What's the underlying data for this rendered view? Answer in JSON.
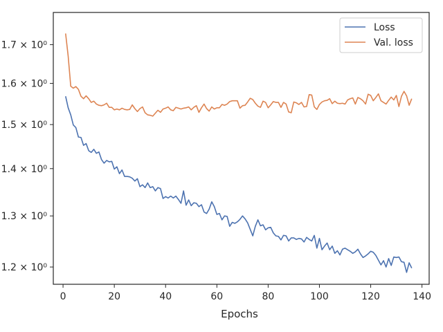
{
  "chart_data": {
    "type": "line",
    "title": "",
    "xlabel": "Epochs",
    "ylabel": "",
    "y_scale": "log",
    "grid": false,
    "legend_position": "top-right",
    "xlim": [
      -3.8,
      142.8
    ],
    "ylim": [
      1.168,
      1.788
    ],
    "xticks": [
      0,
      20,
      40,
      60,
      80,
      100,
      120,
      140
    ],
    "xtick_labels": [
      "0",
      "20",
      "40",
      "60",
      "80",
      "100",
      "120",
      "140"
    ],
    "yticks": [
      1.2,
      1.3,
      1.4,
      1.5,
      1.6,
      1.7
    ],
    "ytick_labels": [
      "1.2 × 10⁰",
      "1.3 × 10⁰",
      "1.4 × 10⁰",
      "1.5 × 10⁰",
      "1.6 × 10⁰",
      "1.7 × 10⁰"
    ],
    "series": [
      {
        "name": "Loss",
        "color": "#4c72b0",
        "x_start": 1,
        "values": [
          1.568,
          1.54,
          1.523,
          1.499,
          1.493,
          1.471,
          1.47,
          1.452,
          1.456,
          1.44,
          1.436,
          1.443,
          1.434,
          1.437,
          1.42,
          1.412,
          1.418,
          1.415,
          1.416,
          1.399,
          1.404,
          1.389,
          1.397,
          1.383,
          1.383,
          1.382,
          1.379,
          1.373,
          1.378,
          1.361,
          1.365,
          1.359,
          1.369,
          1.359,
          1.361,
          1.352,
          1.359,
          1.357,
          1.336,
          1.34,
          1.337,
          1.341,
          1.337,
          1.341,
          1.334,
          1.326,
          1.352,
          1.322,
          1.333,
          1.321,
          1.327,
          1.326,
          1.319,
          1.323,
          1.308,
          1.305,
          1.314,
          1.329,
          1.319,
          1.303,
          1.305,
          1.292,
          1.3,
          1.299,
          1.279,
          1.287,
          1.285,
          1.288,
          1.293,
          1.3,
          1.294,
          1.286,
          1.273,
          1.26,
          1.279,
          1.292,
          1.28,
          1.282,
          1.272,
          1.276,
          1.277,
          1.266,
          1.26,
          1.259,
          1.252,
          1.261,
          1.26,
          1.25,
          1.256,
          1.256,
          1.253,
          1.255,
          1.254,
          1.248,
          1.257,
          1.253,
          1.25,
          1.261,
          1.236,
          1.255,
          1.233,
          1.24,
          1.246,
          1.233,
          1.24,
          1.226,
          1.231,
          1.223,
          1.234,
          1.236,
          1.233,
          1.23,
          1.226,
          1.229,
          1.234,
          1.225,
          1.218,
          1.221,
          1.225,
          1.23,
          1.228,
          1.222,
          1.213,
          1.204,
          1.212,
          1.2,
          1.216,
          1.203,
          1.219,
          1.218,
          1.219,
          1.21,
          1.209,
          1.19,
          1.208,
          1.198
        ]
      },
      {
        "name": "Val. loss",
        "color": "#dd8452",
        "x_start": 1,
        "values": [
          1.73,
          1.67,
          1.593,
          1.588,
          1.592,
          1.585,
          1.568,
          1.562,
          1.569,
          1.562,
          1.553,
          1.556,
          1.549,
          1.546,
          1.545,
          1.547,
          1.551,
          1.541,
          1.541,
          1.535,
          1.537,
          1.535,
          1.539,
          1.536,
          1.535,
          1.536,
          1.547,
          1.538,
          1.531,
          1.538,
          1.542,
          1.528,
          1.523,
          1.522,
          1.52,
          1.527,
          1.534,
          1.529,
          1.537,
          1.539,
          1.542,
          1.535,
          1.533,
          1.541,
          1.539,
          1.537,
          1.539,
          1.54,
          1.542,
          1.535,
          1.541,
          1.545,
          1.529,
          1.54,
          1.549,
          1.538,
          1.532,
          1.542,
          1.537,
          1.54,
          1.54,
          1.548,
          1.546,
          1.549,
          1.555,
          1.557,
          1.557,
          1.557,
          1.539,
          1.545,
          1.546,
          1.554,
          1.563,
          1.56,
          1.551,
          1.544,
          1.541,
          1.556,
          1.553,
          1.54,
          1.547,
          1.555,
          1.553,
          1.553,
          1.541,
          1.553,
          1.549,
          1.53,
          1.528,
          1.554,
          1.552,
          1.548,
          1.553,
          1.542,
          1.543,
          1.572,
          1.571,
          1.542,
          1.536,
          1.548,
          1.554,
          1.557,
          1.558,
          1.562,
          1.55,
          1.556,
          1.551,
          1.55,
          1.551,
          1.549,
          1.559,
          1.562,
          1.564,
          1.549,
          1.565,
          1.562,
          1.557,
          1.549,
          1.573,
          1.57,
          1.557,
          1.565,
          1.574,
          1.557,
          1.553,
          1.549,
          1.558,
          1.566,
          1.559,
          1.57,
          1.543,
          1.568,
          1.58,
          1.569,
          1.546,
          1.562
        ]
      }
    ]
  }
}
